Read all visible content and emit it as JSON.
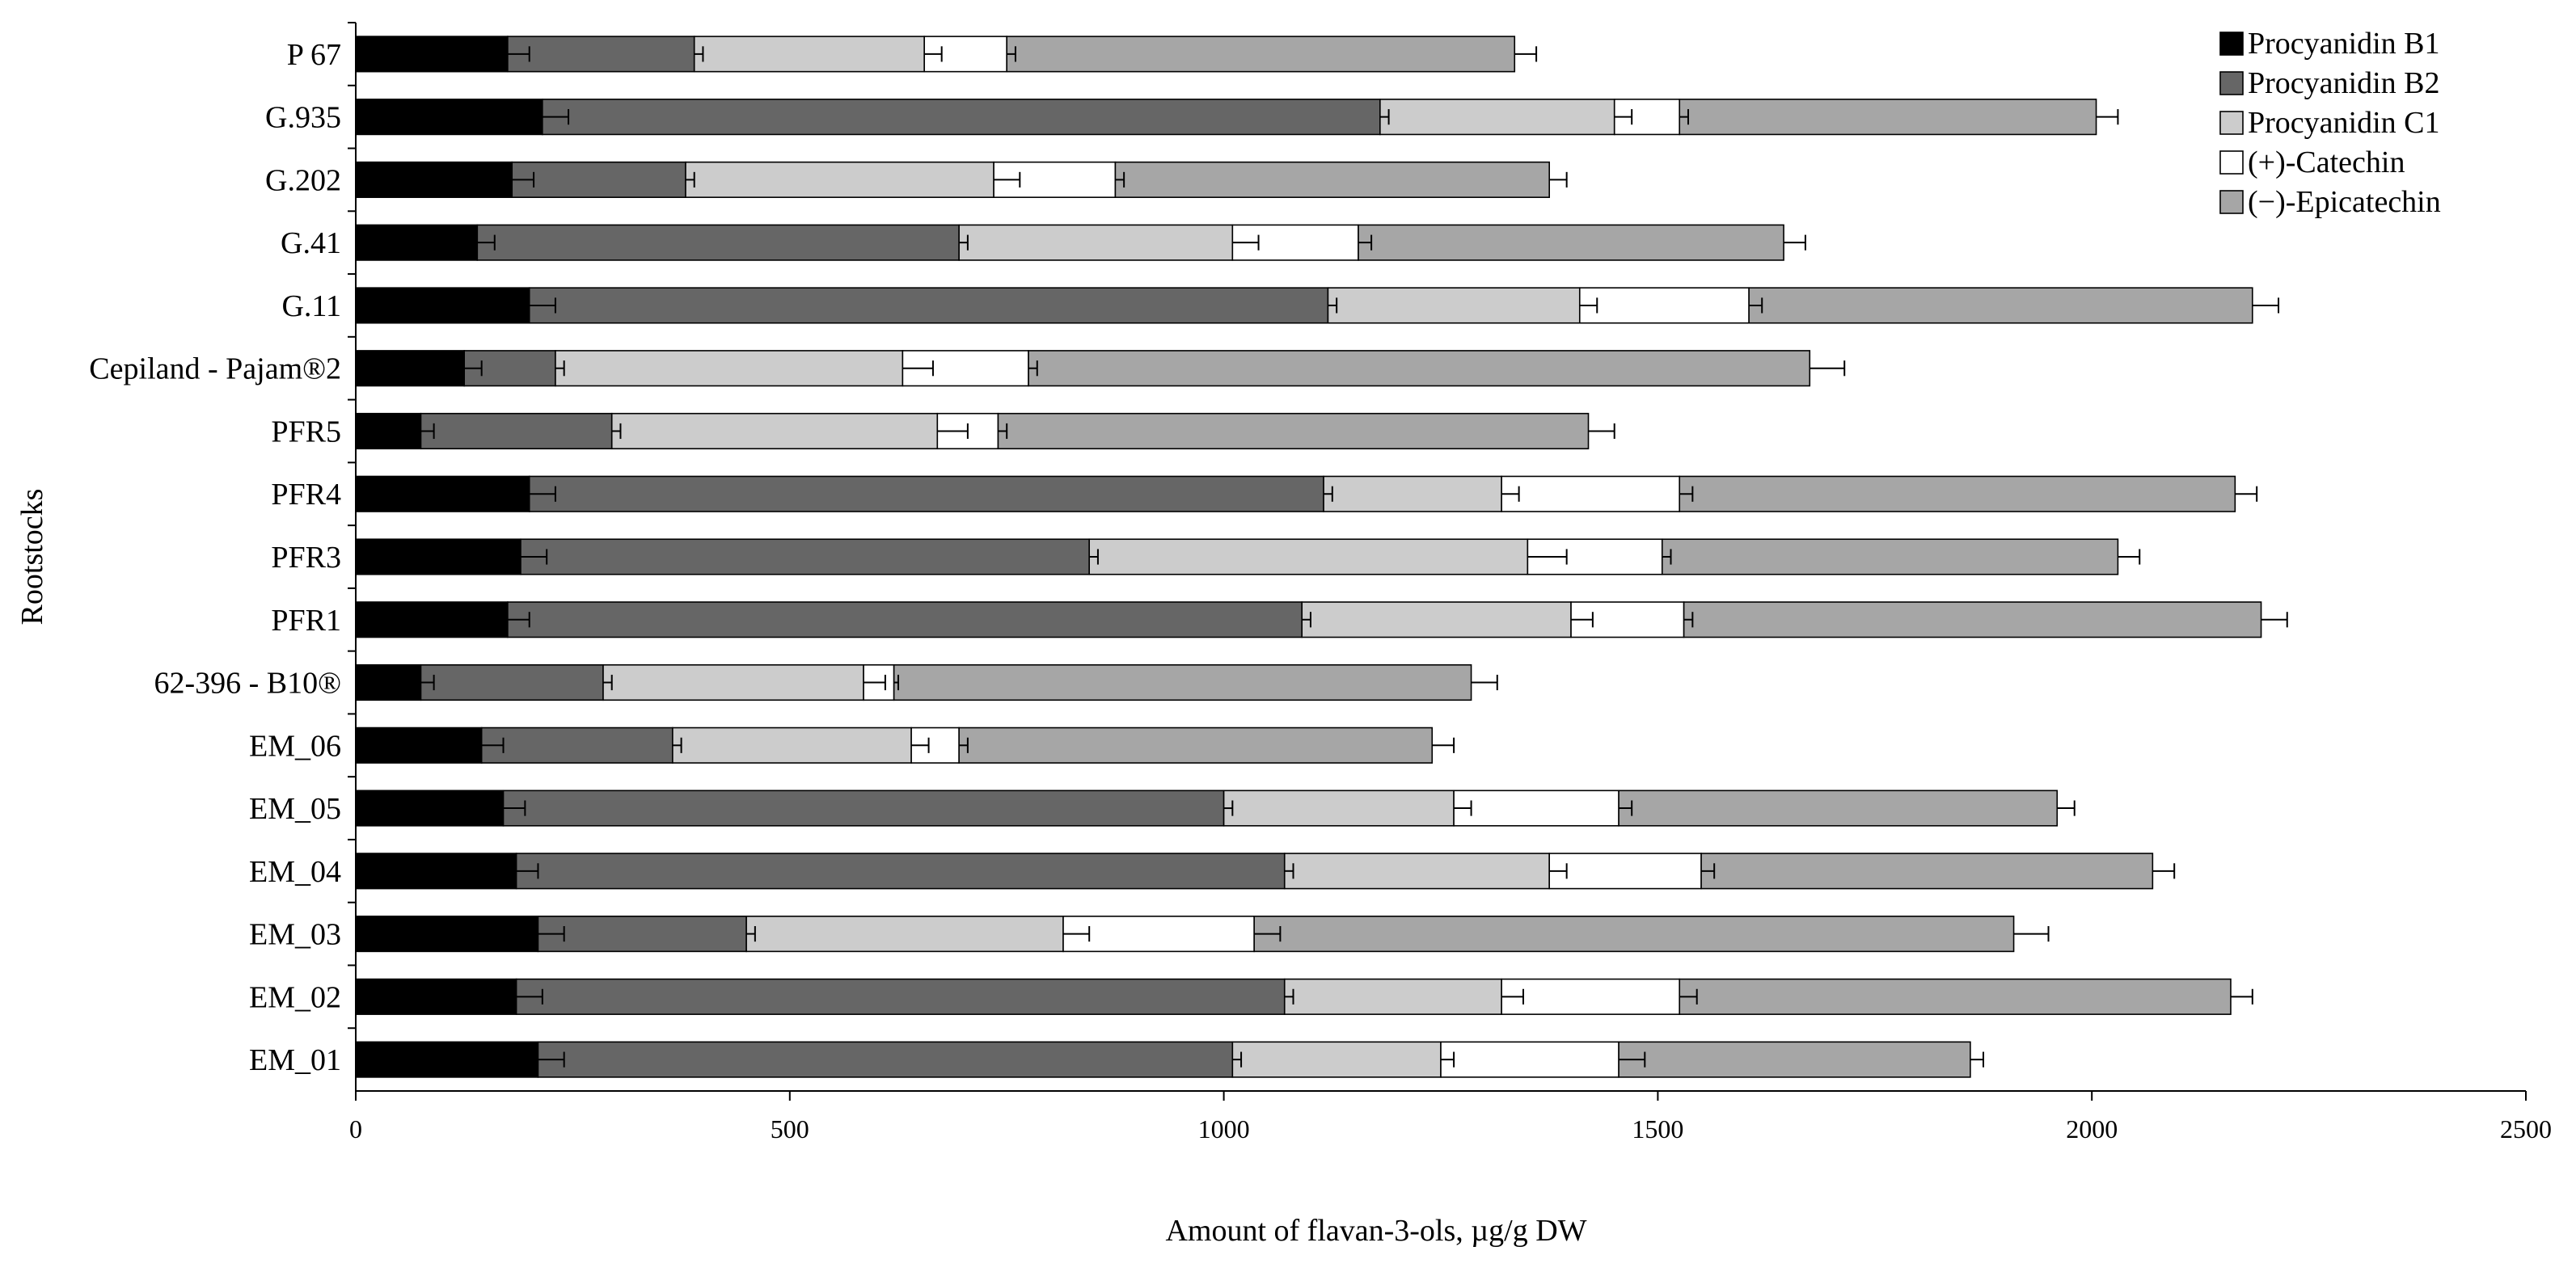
{
  "chart_data": {
    "type": "bar",
    "orientation": "horizontal",
    "stacked": true,
    "title": "",
    "xlabel": "Amount of flavan-3-ols,  µg/g DW",
    "ylabel": "Rootstocks",
    "xlim": [
      0,
      2500
    ],
    "xticks": [
      0,
      500,
      1000,
      1500,
      2000,
      2500
    ],
    "grid": false,
    "legend_position": "top-right",
    "categories": [
      "P 67",
      "G.935",
      "G.202",
      "G.41",
      "G.11",
      "Cepiland - Pajam®2",
      "PFR5",
      "PFR4",
      "PFR3",
      "PFR1",
      "62-396 - B10®",
      "EM_06",
      "EM_05",
      "EM_04",
      "EM_03",
      "EM_02",
      "EM_01"
    ],
    "series": [
      {
        "name": "Procyanidin B1",
        "color": "#000000",
        "values": [
          175,
          215,
          180,
          140,
          200,
          125,
          75,
          200,
          190,
          175,
          75,
          145,
          170,
          185,
          210,
          185,
          210
        ],
        "errors": [
          25,
          30,
          25,
          20,
          30,
          20,
          15,
          30,
          30,
          25,
          15,
          25,
          25,
          25,
          30,
          30,
          30
        ]
      },
      {
        "name": "Procyanidin B2",
        "color": "#666666",
        "values": [
          215,
          965,
          200,
          555,
          920,
          105,
          220,
          915,
          655,
          915,
          210,
          220,
          830,
          885,
          240,
          885,
          800
        ],
        "errors": [
          10,
          10,
          10,
          10,
          10,
          10,
          10,
          10,
          10,
          10,
          10,
          10,
          10,
          10,
          10,
          10,
          10
        ]
      },
      {
        "name": "Procyanidin C1",
        "color": "#cccccc",
        "values": [
          265,
          270,
          355,
          315,
          290,
          400,
          375,
          205,
          505,
          310,
          300,
          275,
          265,
          305,
          365,
          250,
          240
        ],
        "errors": [
          20,
          20,
          30,
          30,
          20,
          35,
          35,
          20,
          45,
          25,
          25,
          20,
          20,
          20,
          30,
          25,
          15
        ]
      },
      {
        "name": "(+)-Catechin",
        "color": "#ffffff",
        "values": [
          95,
          75,
          140,
          145,
          195,
          145,
          70,
          205,
          155,
          130,
          35,
          55,
          190,
          175,
          220,
          205,
          205
        ],
        "errors": [
          10,
          10,
          10,
          15,
          15,
          10,
          10,
          15,
          10,
          10,
          5,
          10,
          15,
          15,
          30,
          20,
          30
        ]
      },
      {
        "name": "(−)-Epicatechin",
        "color": "#a6a6a6",
        "values": [
          585,
          480,
          500,
          490,
          580,
          900,
          680,
          640,
          525,
          665,
          665,
          545,
          505,
          520,
          875,
          635,
          405
        ],
        "errors": [
          25,
          25,
          20,
          25,
          30,
          40,
          30,
          25,
          25,
          30,
          30,
          25,
          20,
          25,
          40,
          25,
          15
        ]
      }
    ]
  }
}
